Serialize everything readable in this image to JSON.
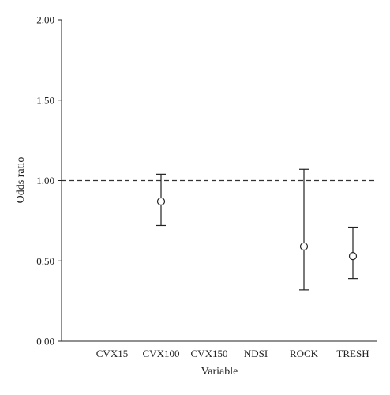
{
  "chart_data": {
    "type": "scatter",
    "subtype": "error-bar",
    "xlabel": "Variable",
    "ylabel": "Odds ratio",
    "categories": [
      "CVX15",
      "CVX100",
      "CVX150",
      "NDSI",
      "ROCK",
      "TRESH"
    ],
    "y_ticks": [
      "0.00",
      "0.50",
      "1.00",
      "1.50",
      "2.00"
    ],
    "ylim": [
      0,
      2.0
    ],
    "reference_line": 1.0,
    "points": [
      {
        "category": "CVX100",
        "estimate": 0.87,
        "lower": 0.72,
        "upper": 1.04
      },
      {
        "category": "ROCK",
        "estimate": 0.59,
        "lower": 0.32,
        "upper": 1.07
      },
      {
        "category": "TRESH",
        "estimate": 0.53,
        "lower": 0.39,
        "upper": 0.71
      }
    ],
    "grid": false
  }
}
